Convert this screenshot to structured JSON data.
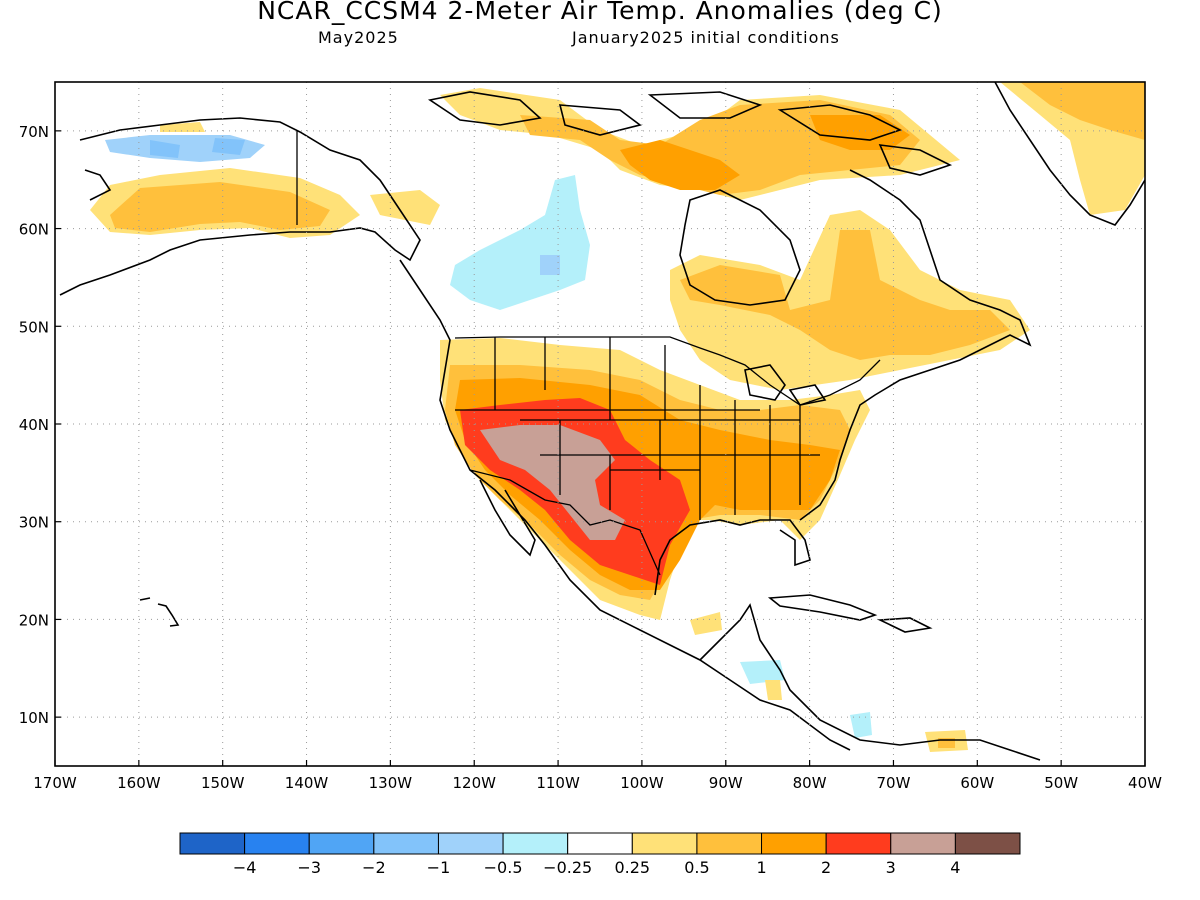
{
  "header": {
    "title": "NCAR_CCSM4 2-Meter Air Temp. Anomalies (deg C)",
    "valid": "May2025",
    "init": "January2025 initial conditions"
  },
  "map": {
    "lon_labels": [
      "170W",
      "160W",
      "150W",
      "140W",
      "130W",
      "120W",
      "110W",
      "100W",
      "90W",
      "80W",
      "70W",
      "60W",
      "50W",
      "40W"
    ],
    "lat_labels": [
      "10N",
      "20N",
      "30N",
      "40N",
      "50N",
      "60N",
      "70N"
    ],
    "lon_range": [
      -170,
      -40
    ],
    "lat_range": [
      5,
      75
    ],
    "grid": true
  },
  "colorbar": {
    "labels": [
      "−4",
      "−3",
      "−2",
      "−1",
      "−0.5",
      "−0.25",
      "0.25",
      "0.5",
      "1",
      "2",
      "3",
      "4"
    ],
    "colors": [
      "#1e64c8",
      "#2882f0",
      "#50a5f5",
      "#82c3fa",
      "#a0d2fa",
      "#b4f0fa",
      "#ffffff",
      "#ffe178",
      "#ffc03c",
      "#ffa000",
      "#ff3c1e",
      "#c8a096",
      "#7d5046"
    ]
  }
}
